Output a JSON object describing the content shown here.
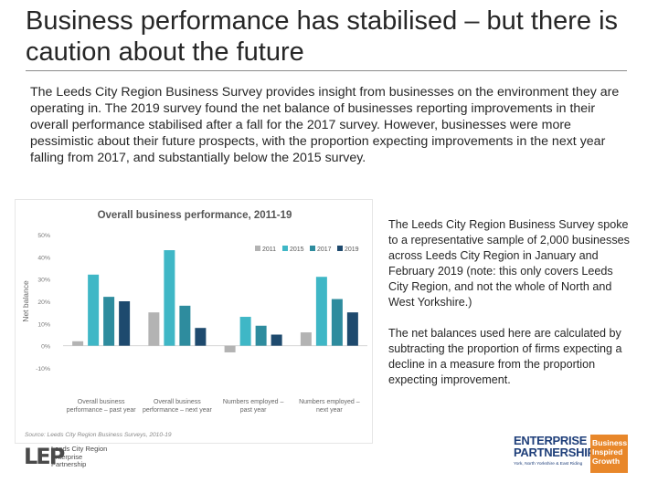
{
  "slide": {
    "title": "Business performance has stabilised – but there is caution about the future",
    "intro": "The Leeds City Region Business Survey provides insight from businesses on the environment they are operating in. The 2019 survey found the net balance of businesses reporting improvements in their overall performance stabilised after a fall for the 2017 survey. However, businesses were more pessimistic about their future prospects, with the proportion expecting improvements in the next year falling from 2017, and substantially below the 2015 survey.",
    "side_paragraphs": [
      "The Leeds City Region Business Survey spoke to a representative sample of 2,000 businesses across Leeds City Region in January and February 2019 (note: this only covers Leeds City Region, and not the whole of North and West Yorkshire.)",
      "The net balances used here are calculated by subtracting the proportion of firms expecting a decline in a measure from the proportion expecting improvement."
    ],
    "source": "Source: Leeds City Region Business Surveys, 2010-19"
  },
  "logos": {
    "lep_mark": "LEP",
    "lep_lines": [
      "Leeds City Region",
      "Enterprise",
      "Partnership"
    ],
    "ep_lines": [
      "ENTERPRISE",
      "PARTNERSHIP"
    ],
    "ep_sub": "York, North Yorkshire & East Riding",
    "ep_box_lines": [
      "Business",
      "Inspired",
      "Growth"
    ]
  },
  "chart_data": {
    "type": "bar",
    "title": "Overall business performance, 2011-19",
    "ylabel": "Net balance",
    "xlabel": "",
    "ylim": [
      -10,
      50
    ],
    "yticks": [
      -10,
      0,
      10,
      20,
      30,
      40,
      50
    ],
    "ytick_labels": [
      "-10%",
      "0%",
      "10%",
      "20%",
      "30%",
      "40%",
      "50%"
    ],
    "legend_position": "top-right",
    "grid": false,
    "categories": [
      [
        "Overall business",
        "performance – past year"
      ],
      [
        "Overall business",
        "performance – next year"
      ],
      [
        "Numbers employed –",
        "past year"
      ],
      [
        "Numbers employed –",
        "next year"
      ]
    ],
    "series": [
      {
        "name": "2011",
        "color": "#b3b3b3",
        "values": [
          2,
          15,
          -3,
          6
        ]
      },
      {
        "name": "2015",
        "color": "#3fb7c6",
        "values": [
          32,
          43,
          13,
          31
        ]
      },
      {
        "name": "2017",
        "color": "#2e8c9e",
        "values": [
          22,
          18,
          9,
          21
        ]
      },
      {
        "name": "2019",
        "color": "#1e4a6e",
        "values": [
          20,
          8,
          5,
          15
        ]
      }
    ]
  }
}
